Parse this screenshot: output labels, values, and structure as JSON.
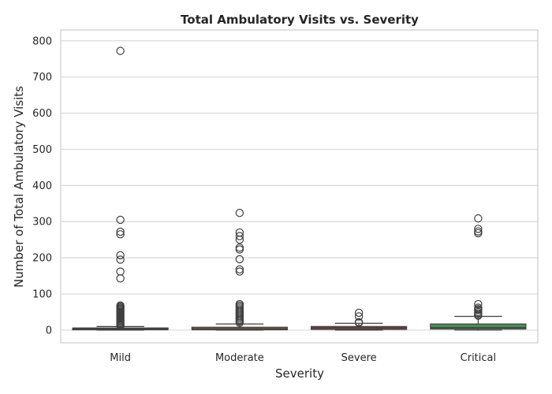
{
  "chart_data": {
    "type": "box",
    "title": "Total Ambulatory Visits vs. Severity",
    "xlabel": "Severity",
    "ylabel": "Number of Total Ambulatory Visits",
    "ylim": [
      -35,
      830
    ],
    "yticks": [
      0,
      100,
      200,
      300,
      400,
      500,
      600,
      700,
      800
    ],
    "grid": true,
    "categories": [
      "Mild",
      "Moderate",
      "Severe",
      "Critical"
    ],
    "boxes": [
      {
        "category": "Mild",
        "color": "#4c72b0",
        "min": 0,
        "q1": 1,
        "median": 3,
        "q3": 6,
        "max": 10,
        "outliers": [
          772,
          305,
          272,
          265,
          207,
          195,
          162,
          143,
          68,
          65,
          62,
          59,
          56,
          53,
          50,
          47,
          44,
          41,
          38,
          35,
          32,
          29,
          26,
          23,
          20,
          17,
          14,
          12
        ]
      },
      {
        "category": "Moderate",
        "color": "#dd8452",
        "min": 0,
        "q1": 1,
        "median": 4,
        "q3": 8,
        "max": 17,
        "outliers": [
          324,
          270,
          260,
          250,
          228,
          223,
          196,
          168,
          162,
          72,
          68,
          64,
          60,
          56,
          52,
          48,
          44,
          40,
          36,
          32,
          28,
          24,
          20
        ]
      },
      {
        "category": "Severe",
        "color": "#c44e52",
        "min": 0,
        "q1": 2,
        "median": 6,
        "q3": 10,
        "max": 19,
        "outliers": [
          48,
          38,
          22,
          20
        ]
      },
      {
        "category": "Critical",
        "color": "#55a868",
        "min": 0,
        "q1": 3,
        "median": 7,
        "q3": 17,
        "max": 38,
        "outliers": [
          309,
          280,
          273,
          268,
          72,
          62,
          58,
          55,
          50,
          46,
          42,
          40
        ]
      }
    ]
  }
}
